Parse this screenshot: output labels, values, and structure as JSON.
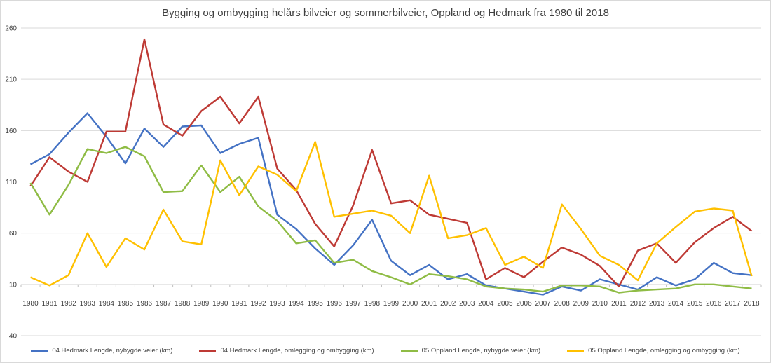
{
  "chart_data": {
    "type": "line",
    "title": "Bygging og ombygging helårs bilveier og sommerbilveier, Oppland og Hedmark fra 1980 til 2018",
    "xlabel": "",
    "ylabel": "",
    "ylim": [
      -40,
      260
    ],
    "yticks": [
      -40,
      10,
      60,
      110,
      160,
      210,
      260
    ],
    "grid": true,
    "legend_position": "bottom",
    "categories": [
      "1980",
      "1981",
      "1982",
      "1983",
      "1984",
      "1985",
      "1986",
      "1987",
      "1988",
      "1989",
      "1990",
      "1991",
      "1992",
      "1993",
      "1994",
      "1995",
      "1996",
      "1997",
      "1998",
      "1999",
      "2000",
      "2001",
      "2002",
      "2003",
      "2004",
      "2005",
      "2006",
      "2007",
      "2008",
      "2009",
      "2010",
      "2011",
      "2012",
      "2013",
      "2014",
      "2015",
      "2016",
      "2017",
      "2018"
    ],
    "series": [
      {
        "name": "04 Hedmark Lengde, nybygde veier (km)",
        "color": "#4472c4",
        "values": [
          127,
          137,
          158,
          177,
          154,
          128,
          162,
          144,
          164,
          165,
          138,
          147,
          153,
          78,
          64,
          45,
          29,
          48,
          73,
          33,
          19,
          29,
          15,
          20,
          9,
          6,
          3,
          0,
          8,
          4,
          15,
          10,
          5,
          17,
          9,
          15,
          31,
          21,
          19
        ]
      },
      {
        "name": "04 Hedmark Lengde, omlegging og ombygging (km)",
        "color": "#be3a35",
        "values": [
          106,
          134,
          120,
          110,
          159,
          159,
          249,
          166,
          155,
          179,
          193,
          167,
          193,
          123,
          102,
          69,
          47,
          87,
          141,
          89,
          92,
          78,
          74,
          70,
          15,
          26,
          17,
          32,
          46,
          39,
          28,
          8,
          43,
          50,
          31,
          51,
          65,
          76,
          62
        ]
      },
      {
        "name": "05 Oppland Lengde, nybygde veier (km)",
        "color": "#8fbc45",
        "values": [
          109,
          78,
          107,
          142,
          138,
          144,
          135,
          100,
          101,
          126,
          100,
          115,
          86,
          72,
          50,
          53,
          31,
          34,
          23,
          17,
          10,
          20,
          18,
          15,
          8,
          6,
          5,
          3,
          9,
          9,
          8,
          2,
          4,
          5,
          6,
          10,
          10,
          8,
          6
        ]
      },
      {
        "name": "05 Oppland Lengde, omlegging og ombygging (km)",
        "color": "#ffc000",
        "values": [
          17,
          9,
          19,
          60,
          27,
          55,
          44,
          83,
          52,
          49,
          131,
          97,
          125,
          117,
          101,
          149,
          76,
          79,
          82,
          77,
          60,
          116,
          55,
          58,
          65,
          29,
          37,
          26,
          88,
          64,
          38,
          29,
          14,
          50,
          66,
          81,
          84,
          82,
          18
        ]
      }
    ]
  }
}
